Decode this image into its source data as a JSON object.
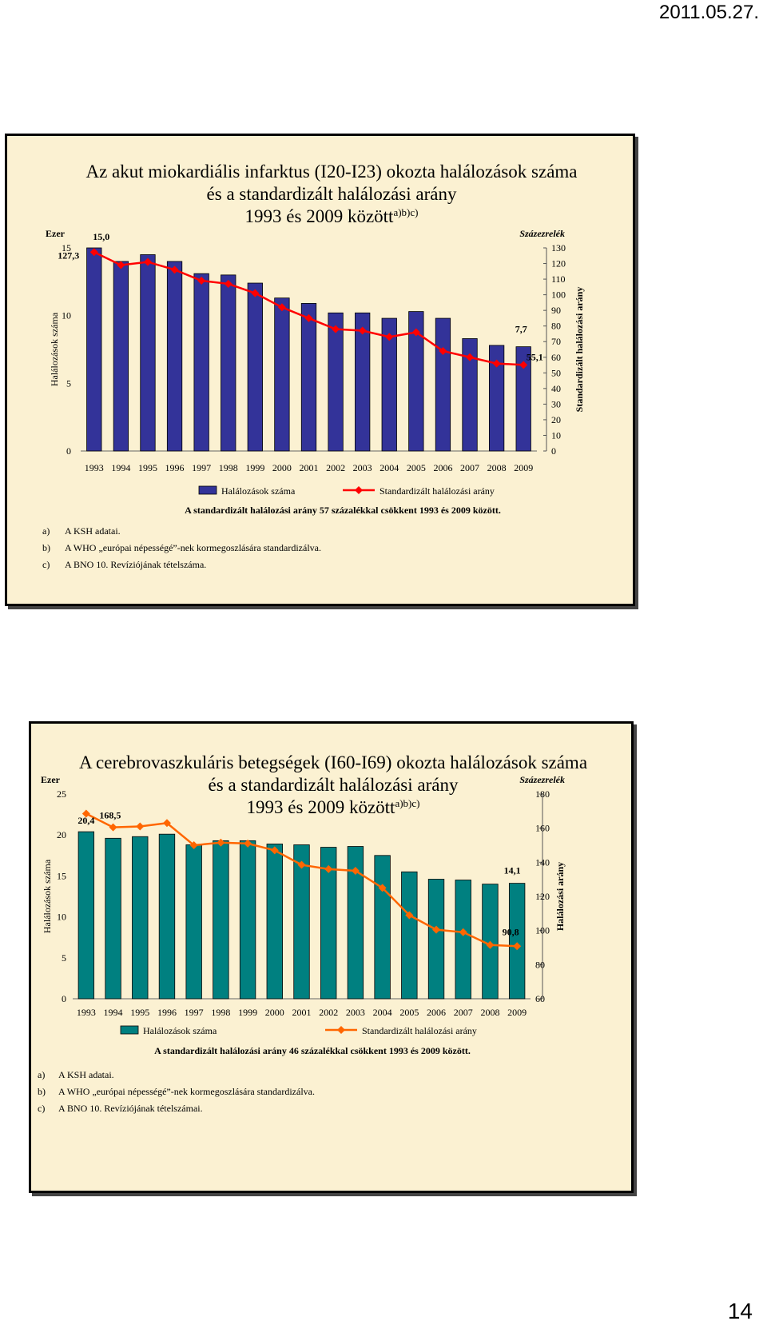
{
  "page": {
    "date": "2011.05.27.",
    "number": "14"
  },
  "chart_data": [
    {
      "type": "bar",
      "title_lines": [
        "Az akut miokardiális infarktus (I20-I23) okozta halálozások száma",
        "és a standardizált halálozási arány"
      ],
      "title_line3": "1993 és 2009 között",
      "title_sup": "a)b)c)",
      "categories": [
        "1993",
        "1994",
        "1995",
        "1996",
        "1997",
        "1998",
        "1999",
        "2000",
        "2001",
        "2002",
        "2003",
        "2004",
        "2005",
        "2006",
        "2007",
        "2008",
        "2009"
      ],
      "series": [
        {
          "name": "Halálozások száma",
          "type": "bar",
          "axis": "left",
          "color": "#333399",
          "values": [
            15.0,
            14.0,
            14.5,
            14.0,
            13.1,
            13.0,
            12.4,
            11.3,
            10.9,
            10.2,
            10.2,
            9.8,
            10.3,
            9.8,
            8.3,
            7.8,
            7.7
          ]
        },
        {
          "name": "Standardizált halálozási arány",
          "type": "line",
          "axis": "right",
          "color": "#ff0000",
          "values": [
            127.3,
            119,
            121,
            116,
            109,
            107,
            101,
            92,
            85,
            78,
            77,
            73,
            76,
            64,
            60,
            56,
            55.1
          ]
        }
      ],
      "data_labels": {
        "bar_first": "15,0",
        "bar_last": "7,7",
        "line_first": "127,3",
        "line_last": "55,1"
      },
      "left_axis": {
        "unit": "Ezer",
        "label": "Halálozások száma",
        "ticks": [
          0,
          5,
          10,
          15
        ],
        "range": [
          0,
          15
        ]
      },
      "right_axis": {
        "unit": "Százezrelék",
        "label": "Standardizált halálozási arány",
        "ticks": [
          0,
          10,
          20,
          30,
          40,
          50,
          60,
          70,
          80,
          90,
          100,
          110,
          120,
          130
        ],
        "range": [
          0,
          130
        ]
      },
      "note": "A standardizált halálozási arány 57 százalékkal csökkent 1993 és 2009 között.",
      "footnotes": [
        {
          "mark": "a)",
          "text": "A KSH adatai."
        },
        {
          "mark": "b)",
          "text": "A WHO „európai népességé”-nek kormegoszlására standardizálva."
        },
        {
          "mark": "c)",
          "text": "A BNO 10. Revíziójának tételszáma."
        }
      ]
    },
    {
      "type": "bar",
      "title_lines": [
        "A cerebrovaszkuláris betegségek (I60-I69) okozta halálozások száma",
        "és a standardizált halálozási arány"
      ],
      "title_line3": "1993 és 2009 között",
      "title_sup": "a)b)c)",
      "categories": [
        "1993",
        "1994",
        "1995",
        "1996",
        "1997",
        "1998",
        "1999",
        "2000",
        "2001",
        "2002",
        "2003",
        "2004",
        "2005",
        "2006",
        "2007",
        "2008",
        "2009"
      ],
      "series": [
        {
          "name": "Halálozások száma",
          "type": "bar",
          "axis": "left",
          "color": "#008080",
          "values": [
            20.4,
            19.6,
            19.8,
            20.1,
            18.8,
            19.3,
            19.3,
            18.9,
            18.8,
            18.5,
            18.6,
            17.5,
            15.5,
            14.6,
            14.5,
            14.0,
            14.1
          ]
        },
        {
          "name": "Standardizált halálozási arány",
          "type": "line",
          "axis": "right",
          "color": "#ff6600",
          "values": [
            168.5,
            160.5,
            161,
            163,
            150,
            151.5,
            151,
            147,
            138.5,
            136,
            135,
            125,
            109,
            100.5,
            99,
            91.5,
            90.8
          ]
        }
      ],
      "data_labels": {
        "bar_first": "20,4",
        "bar_last": "14,1",
        "line_first": "168,5",
        "line_last": "90,8"
      },
      "left_axis": {
        "unit": "Ezer",
        "label": "Halálozások száma",
        "ticks": [
          0,
          5,
          10,
          15,
          20,
          25
        ],
        "range": [
          0,
          25
        ]
      },
      "right_axis": {
        "unit": "Százezrelék",
        "label": "Halálozási arány",
        "ticks": [
          60,
          80,
          100,
          120,
          140,
          160,
          180
        ],
        "range": [
          60,
          180
        ]
      },
      "note": "A standardizált halálozási arány 46 százalékkal csökkent 1993 és 2009 között.",
      "footnotes": [
        {
          "mark": "a)",
          "text": "A KSH adatai."
        },
        {
          "mark": "b)",
          "text": "A WHO „európai népességé”-nek kormegoszlására standardizálva."
        },
        {
          "mark": "c)",
          "text": "A BNO 10. Revíziójának tételszámai."
        }
      ]
    }
  ]
}
